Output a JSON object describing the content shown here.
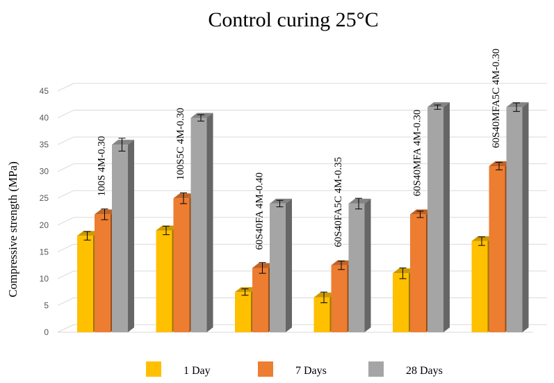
{
  "chart_data": {
    "type": "bar",
    "title": "Control curing 25°C",
    "xlabel": "",
    "ylabel": "Compressive strength (MPa)",
    "ylim": [
      0,
      45
    ],
    "yticks": [
      0,
      5,
      10,
      15,
      20,
      25,
      30,
      35,
      40,
      45
    ],
    "grid": true,
    "legend_position": "bottom",
    "categories": [
      "100S 4M-0.30",
      "100S5C 4M-0.30",
      "60S40FA 4M-0.40",
      "60S40FA5C 4M-0.35",
      "60S40MFA 4M-0.30",
      "60S40MFA5C 4M-0.30"
    ],
    "series": [
      {
        "name": "1 Day",
        "color": "#FFC000",
        "values": [
          18,
          19,
          7.5,
          6.5,
          11,
          17
        ],
        "errors": [
          0.8,
          0.8,
          0.6,
          1.0,
          1.0,
          0.8
        ]
      },
      {
        "name": "7 Days",
        "color": "#ED7D31",
        "values": [
          22,
          25,
          12,
          12.5,
          22,
          31
        ],
        "errors": [
          1.0,
          1.0,
          1.0,
          0.8,
          0.6,
          0.7
        ]
      },
      {
        "name": "28 Days",
        "color": "#A5A5A5",
        "values": [
          35,
          40,
          24,
          24,
          42,
          42
        ],
        "errors": [
          1.2,
          0.6,
          0.6,
          1.0,
          0.4,
          0.8
        ]
      }
    ]
  }
}
